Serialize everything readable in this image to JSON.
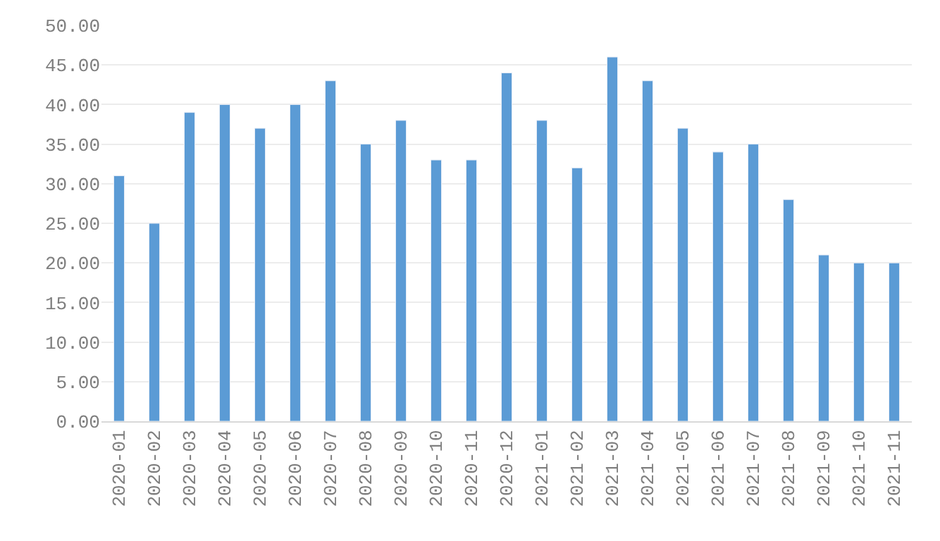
{
  "chart_data": {
    "type": "bar",
    "categories": [
      "2020-01",
      "2020-02",
      "2020-03",
      "2020-04",
      "2020-05",
      "2020-06",
      "2020-07",
      "2020-08",
      "2020-09",
      "2020-10",
      "2020-11",
      "2020-12",
      "2021-01",
      "2021-02",
      "2021-03",
      "2021-04",
      "2021-05",
      "2021-06",
      "2021-07",
      "2021-08",
      "2021-09",
      "2021-10",
      "2021-11"
    ],
    "values": [
      31,
      25,
      39,
      40,
      37,
      40,
      43,
      35,
      38,
      33,
      33,
      44,
      38,
      32,
      46,
      43,
      37,
      34,
      35,
      28,
      21,
      20,
      20
    ],
    "color": "#5b9bd5",
    "ylim": [
      0,
      50
    ],
    "yticks": [
      {
        "value": 0,
        "label": "0.00"
      },
      {
        "value": 5,
        "label": "5.00"
      },
      {
        "value": 10,
        "label": "10.00"
      },
      {
        "value": 15,
        "label": "15.00"
      },
      {
        "value": 20,
        "label": "20.00"
      },
      {
        "value": 25,
        "label": "25.00"
      },
      {
        "value": 30,
        "label": "30.00"
      },
      {
        "value": 35,
        "label": "35.00"
      },
      {
        "value": 40,
        "label": "40.00"
      },
      {
        "value": 45,
        "label": "45.00"
      },
      {
        "value": 50,
        "label": "50.00"
      }
    ],
    "grid": "y"
  }
}
